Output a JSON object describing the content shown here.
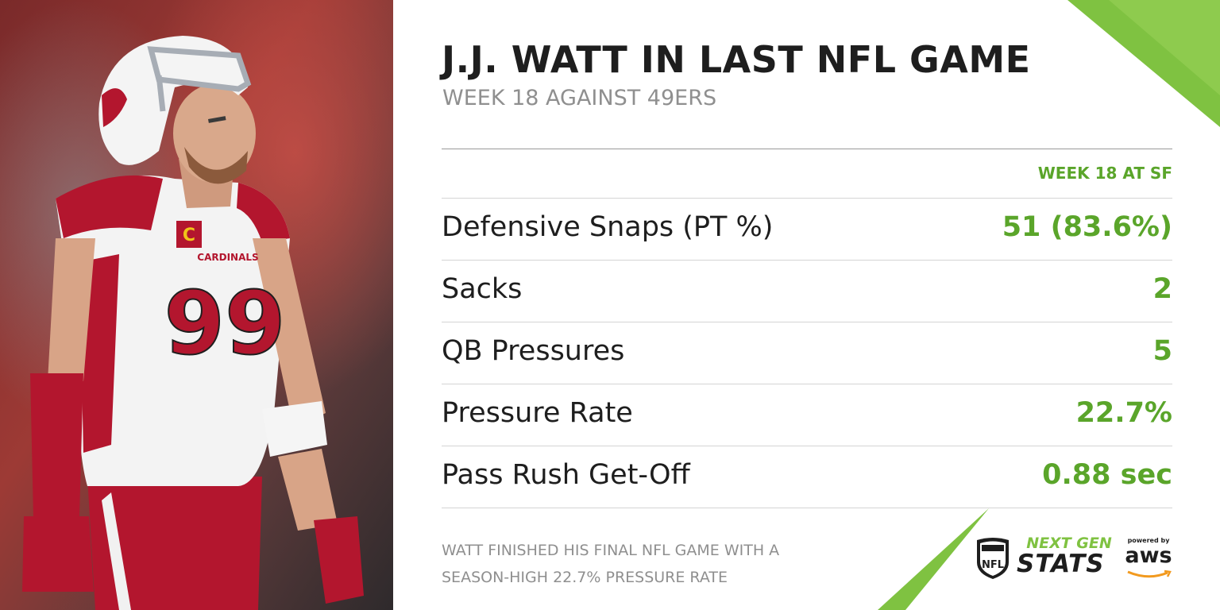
{
  "header": {
    "title": "J.J. WATT IN LAST NFL GAME",
    "subtitle": "WEEK 18 AGAINST 49ERS"
  },
  "table": {
    "column_header": "WEEK 18 AT SF",
    "rows": [
      {
        "label": "Defensive Snaps (PT %)",
        "value": "51 (83.6%)"
      },
      {
        "label": "Sacks",
        "value": "2"
      },
      {
        "label": "QB Pressures",
        "value": "5"
      },
      {
        "label": "Pressure Rate",
        "value": "22.7%"
      },
      {
        "label": "Pass Rush Get-Off",
        "value": "0.88 sec"
      }
    ]
  },
  "footnote": {
    "line1": "WATT FINISHED HIS FINAL NFL GAME WITH A",
    "line2": "SEASON-HIGH 22.7% PRESSURE RATE"
  },
  "photo": {
    "jersey_number": "99",
    "jersey_text": "CARDINALS",
    "captain_patch": "C"
  },
  "branding": {
    "nfl_logo_text": "NFL",
    "ngs_top": "NEXT GEN",
    "ngs_bottom": "STATS",
    "powered_by": "powered by",
    "aws": "aws"
  },
  "colors": {
    "accent_green": "#5aa52a",
    "slash_green": "#7fc241",
    "title": "#1e1e1e",
    "muted": "#8f8f8f",
    "jersey_red": "#b3162e"
  },
  "icons": [
    "nfl-shield-icon",
    "aws-smile-icon"
  ]
}
